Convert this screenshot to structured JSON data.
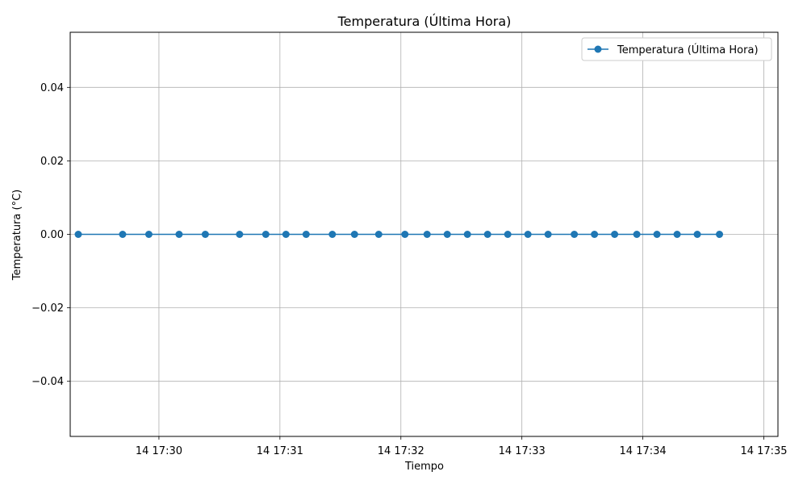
{
  "chart_data": {
    "type": "line",
    "title": "Temperatura (Última Hora)",
    "xlabel": "Tiempo",
    "ylabel": "Temperatura (°C)",
    "grid": true,
    "legend_position": "top-right",
    "x_tick_labels": [
      "14 17:30",
      "14 17:31",
      "14 17:32",
      "14 17:33",
      "14 17:34",
      "14 17:35"
    ],
    "x_tick_values": [
      "17:30:00",
      "17:31:00",
      "17:32:00",
      "17:33:00",
      "17:34:00",
      "17:35:00"
    ],
    "xlim": [
      "17:29:16",
      "17:35:07"
    ],
    "y_tick_labels": [
      "−0.04",
      "−0.02",
      "0.00",
      "0.02",
      "0.04"
    ],
    "y_tick_values": [
      -0.04,
      -0.02,
      0.0,
      0.02,
      0.04
    ],
    "ylim": [
      -0.055,
      0.055
    ],
    "series": [
      {
        "name": "Temperatura (Última Hora)",
        "color": "#1f77b4",
        "marker": "circle",
        "x": [
          "17:29:20",
          "17:29:42",
          "17:29:55",
          "17:30:10",
          "17:30:23",
          "17:30:40",
          "17:30:53",
          "17:31:03",
          "17:31:13",
          "17:31:26",
          "17:31:37",
          "17:31:49",
          "17:32:02",
          "17:32:13",
          "17:32:23",
          "17:32:33",
          "17:32:43",
          "17:32:53",
          "17:33:03",
          "17:33:13",
          "17:33:26",
          "17:33:36",
          "17:33:46",
          "17:33:57",
          "17:34:07",
          "17:34:17",
          "17:34:27",
          "17:34:38"
        ],
        "y": [
          0,
          0,
          0,
          0,
          0,
          0,
          0,
          0,
          0,
          0,
          0,
          0,
          0,
          0,
          0,
          0,
          0,
          0,
          0,
          0,
          0,
          0,
          0,
          0,
          0,
          0,
          0,
          0
        ]
      }
    ]
  }
}
